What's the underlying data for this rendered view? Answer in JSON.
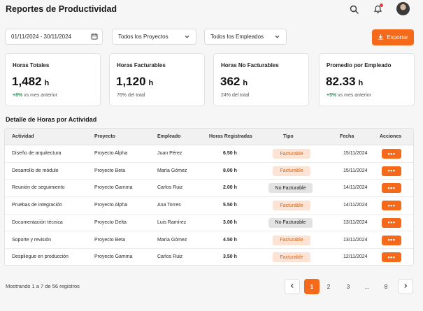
{
  "header": {
    "title": "Reportes de Productividad",
    "icons": [
      "search-icon",
      "bell-icon",
      "avatar"
    ]
  },
  "filters": {
    "date_range": "01/11/2024 - 30/11/2024",
    "projects": "Todos los Proyectos",
    "employees": "Todos los Empleados",
    "export_label": "Exportar"
  },
  "cards": [
    {
      "label": "Horas Totales",
      "value": "1,482",
      "unit": "h",
      "delta": "+8%",
      "sub": "vs mes anterior"
    },
    {
      "label": "Horas Facturables",
      "value": "1,120",
      "unit": "h",
      "delta": "",
      "sub": "76% del total"
    },
    {
      "label": "Horas No Facturables",
      "value": "362",
      "unit": "h",
      "delta": "",
      "sub": "24% del total"
    },
    {
      "label": "Promedio por Empleado",
      "value": "82.33",
      "unit": "h",
      "delta": "+5%",
      "sub": "vs mes anterior"
    }
  ],
  "section_title": "Detalle de Horas por Actividad",
  "table": {
    "columns": [
      "Actividad",
      "Proyecto",
      "Empleado",
      "Horas Registradas",
      "Tipo",
      "Fecha",
      "Acciones"
    ],
    "rows": [
      {
        "actividad": "Diseño de arquitectura",
        "proyecto": "Proyecto Alpha",
        "empleado": "Juan Pérez",
        "horas": "6.50 h",
        "tipo": "Facturable",
        "fecha": "15/11/2024",
        "accion": "•••"
      },
      {
        "actividad": "Desarrollo de módulo",
        "proyecto": "Proyecto Beta",
        "empleado": "María Gómez",
        "horas": "8.00 h",
        "tipo": "Facturable",
        "fecha": "15/11/2024",
        "accion": "•••"
      },
      {
        "actividad": "Reunión de seguimiento",
        "proyecto": "Proyecto Gamma",
        "empleado": "Carlos Ruiz",
        "horas": "2.00 h",
        "tipo": "No Facturable",
        "fecha": "14/11/2024",
        "accion": "•••"
      },
      {
        "actividad": "Pruebas de integración",
        "proyecto": "Proyecto Alpha",
        "empleado": "Ana Torres",
        "horas": "5.50 h",
        "tipo": "Facturable",
        "fecha": "14/11/2024",
        "accion": "•••"
      },
      {
        "actividad": "Documentación técnica",
        "proyecto": "Proyecto Delta",
        "empleado": "Luis Ramírez",
        "horas": "3.00 h",
        "tipo": "No Facturable",
        "fecha": "13/11/2024",
        "accion": "•••"
      },
      {
        "actividad": "Soporte y revisión",
        "proyecto": "Proyecto Beta",
        "empleado": "María Gómez",
        "horas": "4.50 h",
        "tipo": "Facturable",
        "fecha": "13/11/2024",
        "accion": "•••"
      },
      {
        "actividad": "Despliegue en producción",
        "proyecto": "Proyecto Gamma",
        "empleado": "Carlos Ruiz",
        "horas": "3.50 h",
        "tipo": "Facturable",
        "fecha": "12/11/2024",
        "accion": "•••"
      }
    ]
  },
  "footer": {
    "showing": "Mostrando 1 a 7 de 56 registros",
    "pages": [
      "1",
      "2",
      "3",
      "...",
      "8"
    ],
    "current_page": "1"
  },
  "colors": {
    "accent": "#f4691a",
    "positive": "#22a05a"
  }
}
